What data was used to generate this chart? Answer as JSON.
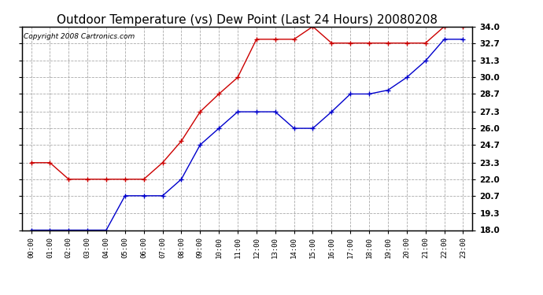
{
  "title": "Outdoor Temperature (vs) Dew Point (Last 24 Hours) 20080208",
  "copyright": "Copyright 2008 Cartronics.com",
  "hours": [
    "00:00",
    "01:00",
    "02:00",
    "03:00",
    "04:00",
    "05:00",
    "06:00",
    "07:00",
    "08:00",
    "09:00",
    "10:00",
    "11:00",
    "12:00",
    "13:00",
    "14:00",
    "15:00",
    "16:00",
    "17:00",
    "18:00",
    "19:00",
    "20:00",
    "21:00",
    "22:00",
    "23:00"
  ],
  "temp": [
    23.3,
    23.3,
    22.0,
    22.0,
    22.0,
    22.0,
    22.0,
    23.3,
    25.0,
    27.3,
    28.7,
    30.0,
    33.0,
    33.0,
    33.0,
    34.0,
    32.7,
    32.7,
    32.7,
    32.7,
    32.7,
    32.7,
    34.0,
    34.0
  ],
  "dew": [
    18.0,
    18.0,
    18.0,
    18.0,
    18.0,
    20.7,
    20.7,
    20.7,
    22.0,
    24.7,
    26.0,
    27.3,
    27.3,
    27.3,
    26.0,
    26.0,
    27.3,
    28.7,
    28.7,
    29.0,
    30.0,
    31.3,
    33.0,
    33.0
  ],
  "temp_color": "#cc0000",
  "dew_color": "#0000cc",
  "bg_color": "#ffffff",
  "grid_color": "#aaaaaa",
  "ylim": [
    18.0,
    34.0
  ],
  "yticks": [
    18.0,
    19.3,
    20.7,
    22.0,
    23.3,
    24.7,
    26.0,
    27.3,
    28.7,
    30.0,
    31.3,
    32.7,
    34.0
  ],
  "title_fontsize": 11,
  "copyright_fontsize": 6.5,
  "marker_size": 4,
  "linewidth": 1.0
}
